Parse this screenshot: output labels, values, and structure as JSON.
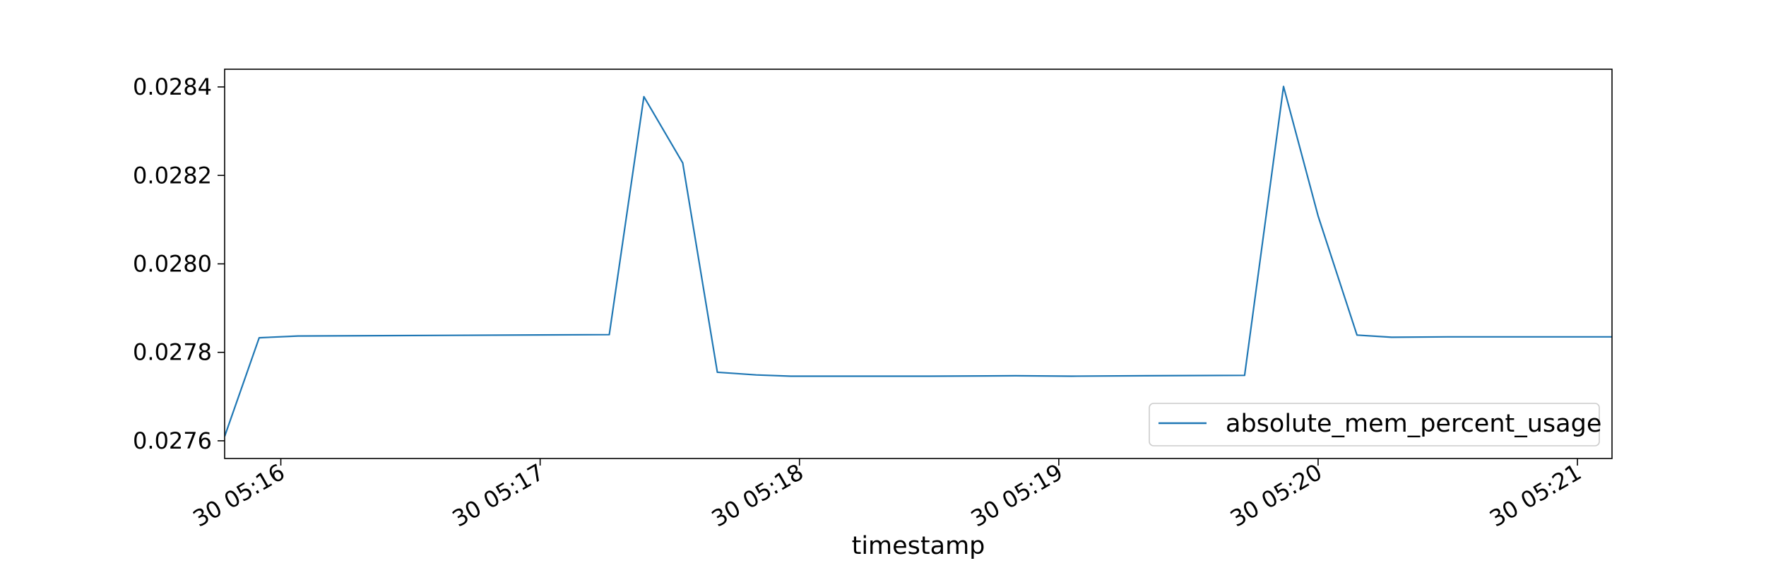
{
  "chart_data": {
    "type": "line",
    "title": "",
    "xlabel": "timestamp",
    "ylabel": "",
    "xlim": [
      "05:15:47",
      "05:21:08"
    ],
    "ylim": [
      0.02756,
      0.02844
    ],
    "grid": false,
    "legend_position": "lower-right",
    "x_tick_labels": [
      {
        "label": "30 05:16",
        "time": "05:16:00"
      },
      {
        "label": "30 05:17",
        "time": "05:17:00"
      },
      {
        "label": "30 05:18",
        "time": "05:18:00"
      },
      {
        "label": "30 05:19",
        "time": "05:19:00"
      },
      {
        "label": "30 05:20",
        "time": "05:20:00"
      },
      {
        "label": "30 05:21",
        "time": "05:21:00"
      }
    ],
    "y_tick_labels": [
      {
        "label": "0.0276",
        "value": 0.0276
      },
      {
        "label": "0.0278",
        "value": 0.0278
      },
      {
        "label": "0.0280",
        "value": 0.028
      },
      {
        "label": "0.0282",
        "value": 0.0282
      },
      {
        "label": "0.0284",
        "value": 0.0284
      }
    ],
    "colors": {
      "series": "#1f77b4",
      "axes": "#000000",
      "legend_border": "#cccccc"
    },
    "series": [
      {
        "name": "absolute_mem_percent_usage",
        "x": [
          "05:15:47",
          "05:15:55",
          "05:16:04",
          "05:17:16",
          "05:17:24",
          "05:17:33",
          "05:17:41",
          "05:17:50",
          "05:17:58",
          "05:18:30",
          "05:18:50",
          "05:19:03",
          "05:19:20",
          "05:19:43",
          "05:19:52",
          "05:20:00",
          "05:20:09",
          "05:20:17",
          "05:20:30",
          "05:21:08"
        ],
        "y": [
          0.02761,
          0.027833,
          0.027837,
          0.02784,
          0.028378,
          0.028228,
          0.027755,
          0.027749,
          0.027746,
          0.027746,
          0.027747,
          0.027746,
          0.027747,
          0.027748,
          0.028401,
          0.028108,
          0.027839,
          0.027834,
          0.027835,
          0.027835
        ]
      }
    ]
  }
}
